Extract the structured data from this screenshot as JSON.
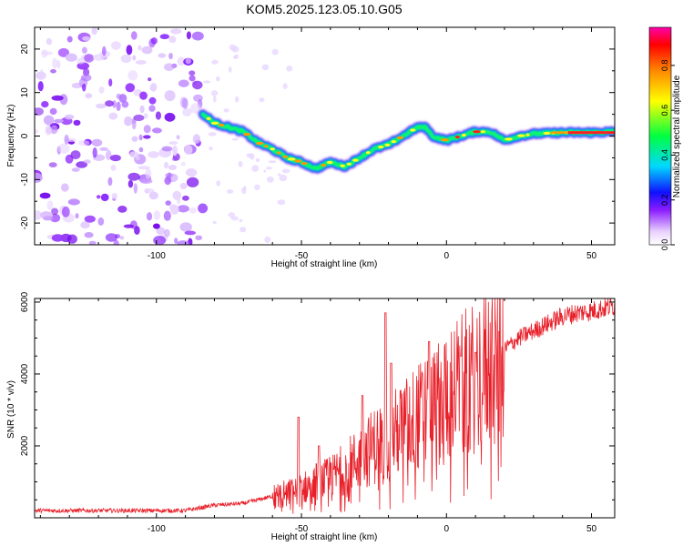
{
  "title": "KOM5.2025.123.05.10.G05",
  "chart_data": [
    {
      "type": "heatmap",
      "xlabel": "Height of straight line (km)",
      "ylabel": "Frequency (Hz)",
      "xlim": [
        -142,
        58
      ],
      "ylim": [
        -25,
        25
      ],
      "xticks": [
        -100,
        -50,
        0,
        50
      ],
      "yticks": [
        -20,
        -10,
        0,
        10,
        20
      ],
      "colorbar": {
        "label": "Normalized spectral amplitude",
        "range": [
          0,
          0.97
        ],
        "ticks": [
          0.0,
          0.2,
          0.4,
          0.6,
          0.8
        ]
      },
      "ridge": {
        "x": [
          -84,
          -80,
          -75,
          -70,
          -65,
          -60,
          -55,
          -50,
          -45,
          -40,
          -35,
          -30,
          -25,
          -20,
          -15,
          -10,
          -7,
          -5,
          0,
          5,
          10,
          15,
          20,
          25,
          30,
          40,
          50,
          58
        ],
        "y": [
          5,
          3,
          2,
          1,
          -1.5,
          -3,
          -5,
          -6,
          -7.5,
          -6,
          -7,
          -5,
          -3,
          -2,
          0,
          2,
          2,
          0,
          -1,
          0,
          1,
          1,
          -1,
          0,
          0.5,
          0.8,
          0.8,
          1
        ]
      },
      "noise_region_x": [
        -142,
        -84
      ]
    },
    {
      "type": "line",
      "xlabel": "Height of straight line (km)",
      "ylabel": "SNR (10 * v/v)",
      "xlim": [
        -142,
        58
      ],
      "ylim": [
        0,
        6100
      ],
      "xticks": [
        -100,
        -50,
        0,
        50
      ],
      "yticks": [
        2000,
        4000,
        6000
      ],
      "color": "#e8202a",
      "envelope": {
        "x": [
          -142,
          -90,
          -80,
          -70,
          -60,
          -50,
          -45,
          -40,
          -35,
          -30,
          -25,
          -20,
          -15,
          -10,
          -5,
          0,
          5,
          10,
          15,
          20,
          25,
          30,
          35,
          40,
          45,
          50,
          58
        ],
        "y": [
          200,
          200,
          350,
          400,
          600,
          800,
          1000,
          1100,
          1400,
          1650,
          2000,
          2200,
          2500,
          2800,
          3000,
          3500,
          3700,
          3900,
          4300,
          4700,
          5000,
          5200,
          5400,
          5600,
          5700,
          5750,
          5900
        ]
      },
      "spikes": [
        {
          "x": -51,
          "y": 2800
        },
        {
          "x": -44,
          "y": 2000
        },
        {
          "x": -29,
          "y": 3400
        },
        {
          "x": -21,
          "y": 5700
        },
        {
          "x": -19,
          "y": 4300
        },
        {
          "x": -6,
          "y": 4900
        },
        {
          "x": 5,
          "y": 4500
        },
        {
          "x": 10,
          "y": 4600
        }
      ]
    }
  ]
}
